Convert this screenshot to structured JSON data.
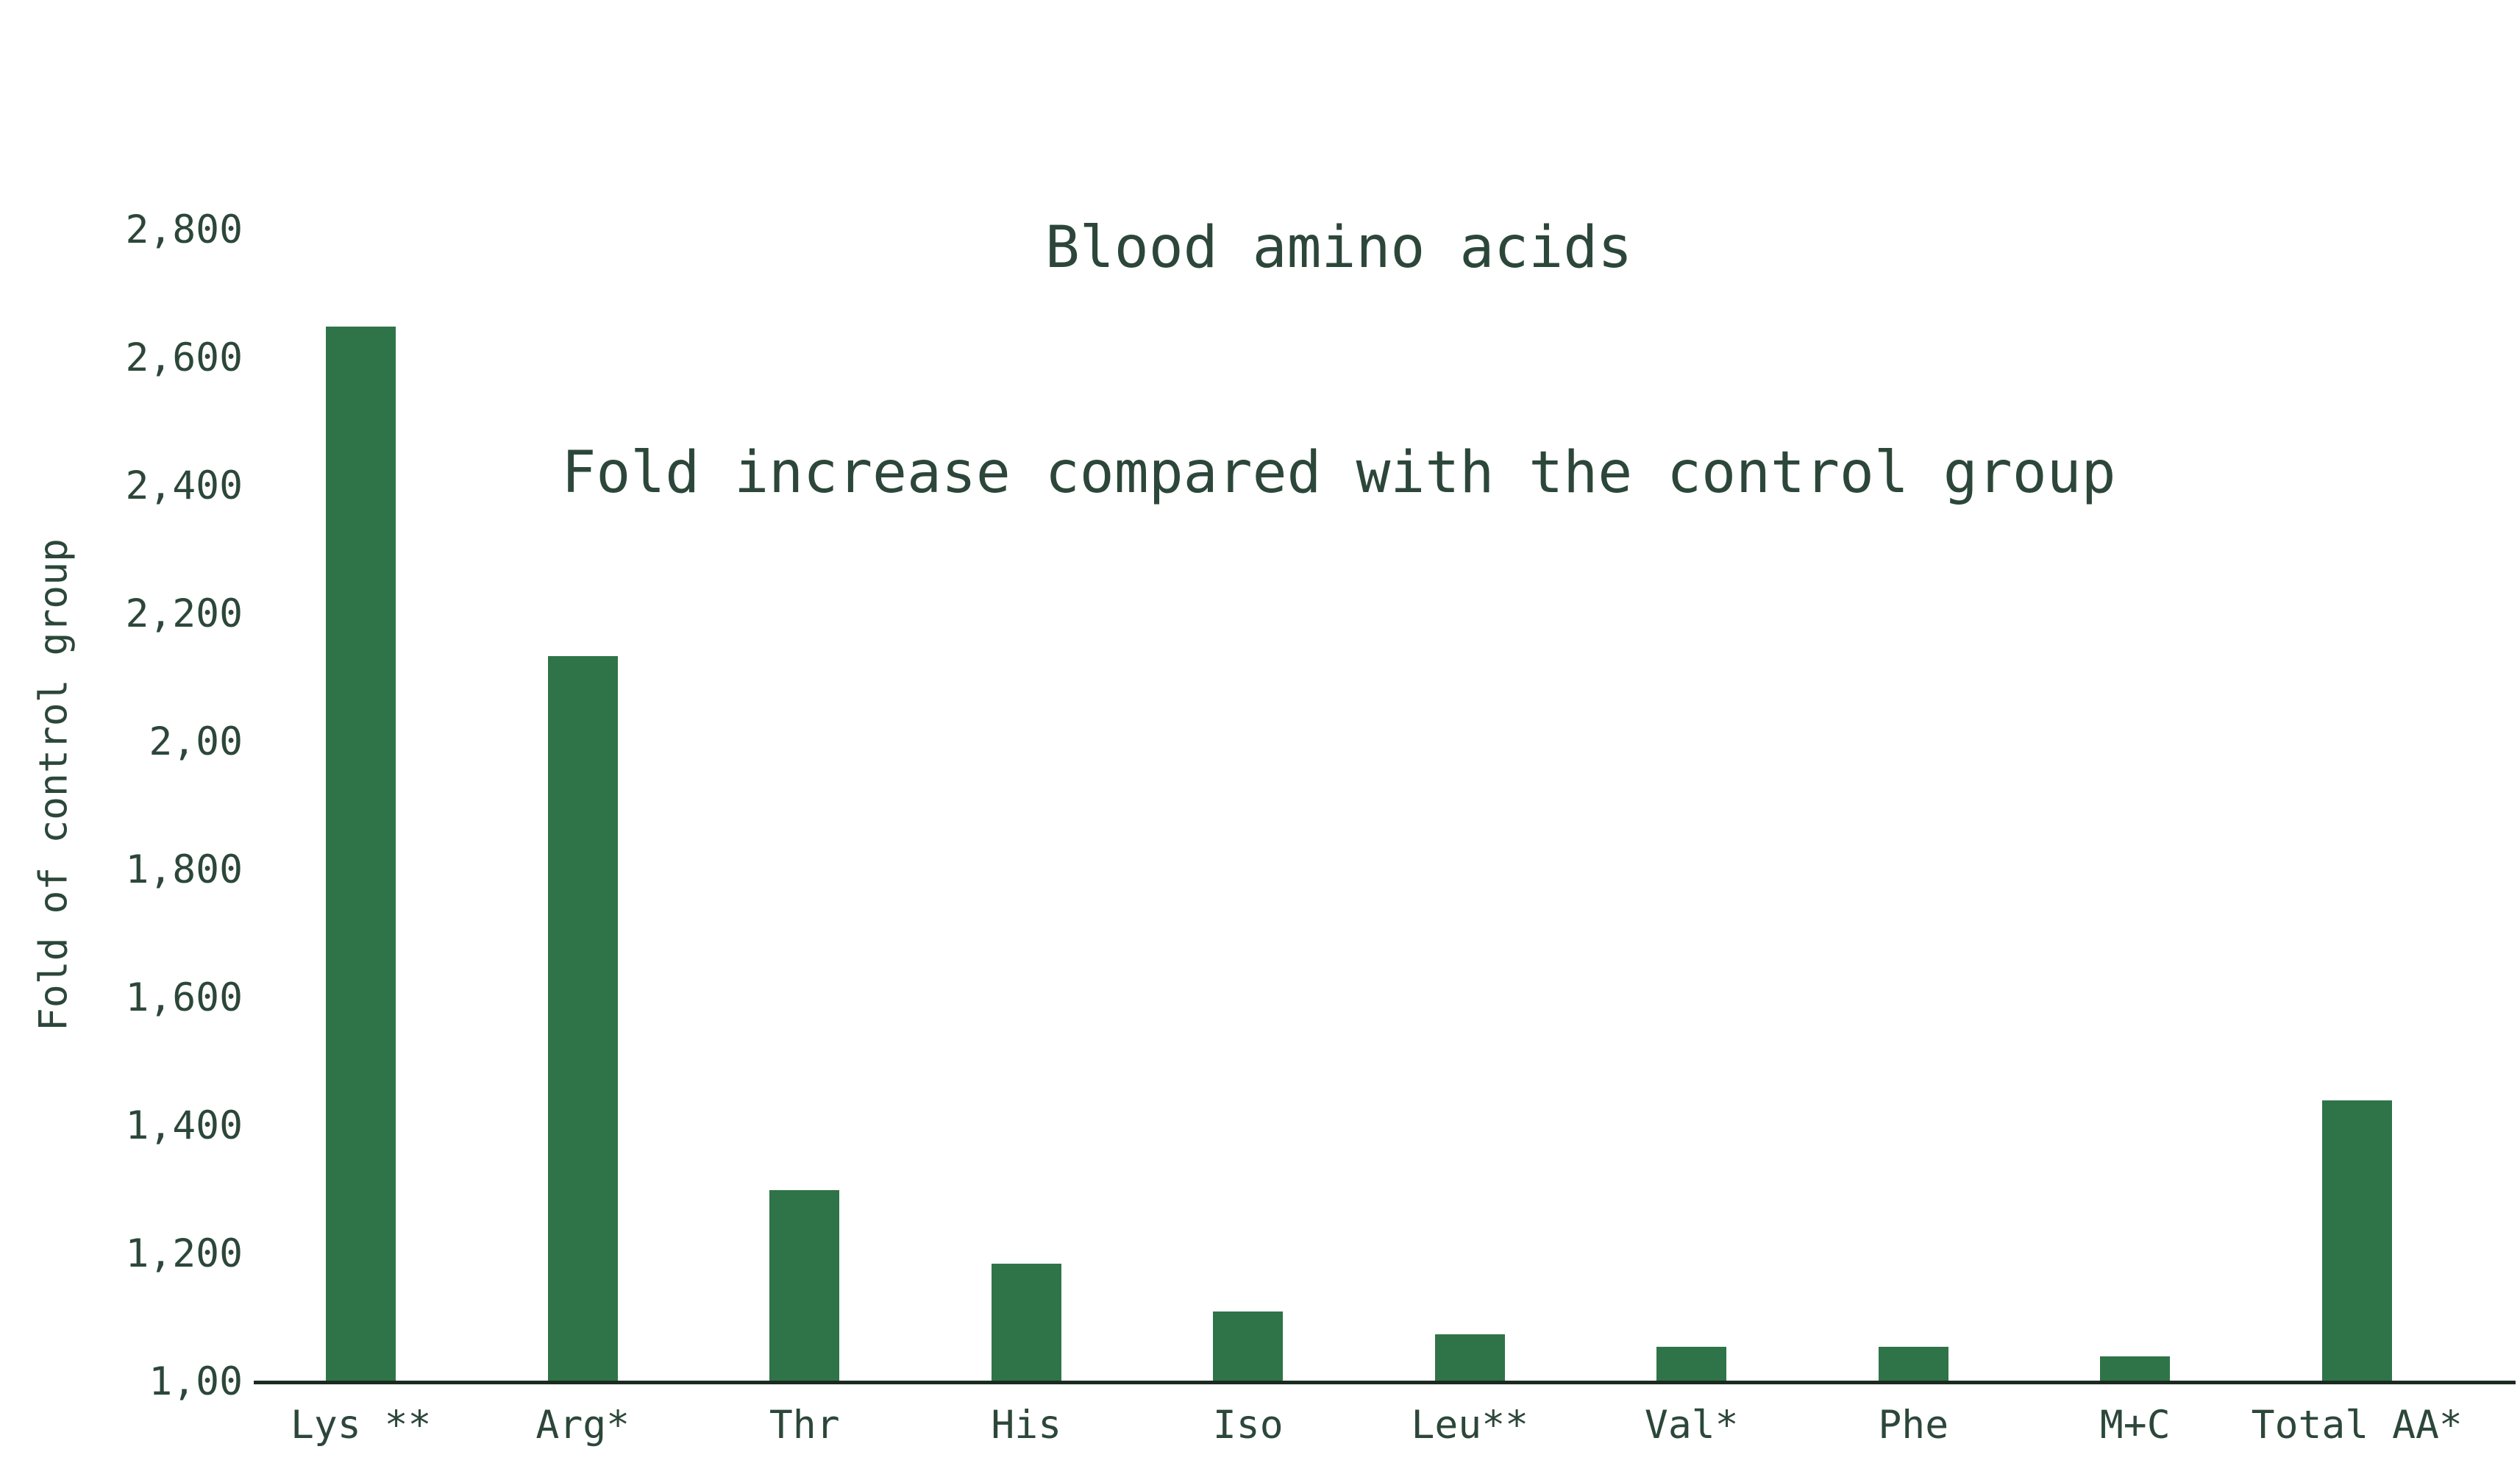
{
  "chart_data": {
    "type": "bar",
    "title_line1": "Blood amino acids",
    "title_line2": "Fold increase compared with the control group",
    "ylabel": "Fold of control group",
    "xlabel": "",
    "categories": [
      "Lys **",
      "Arg*",
      "Thr",
      "His",
      "Iso",
      "Leu**",
      "Val*",
      "Phe",
      "M+C",
      "Total AA*"
    ],
    "values": [
      2650,
      2135,
      1300,
      1185,
      1110,
      1075,
      1055,
      1055,
      1040,
      1440
    ],
    "ylim": [
      1000,
      2800
    ],
    "yticks": [
      {
        "value": 1000,
        "label": "1,00"
      },
      {
        "value": 1200,
        "label": "1,200"
      },
      {
        "value": 1400,
        "label": "1,400"
      },
      {
        "value": 1600,
        "label": "1,600"
      },
      {
        "value": 1800,
        "label": "1,800"
      },
      {
        "value": 2000,
        "label": "2,00"
      },
      {
        "value": 2200,
        "label": "2,200"
      },
      {
        "value": 2400,
        "label": "2,400"
      },
      {
        "value": 2600,
        "label": "2,600"
      },
      {
        "value": 2800,
        "label": "2,800"
      }
    ],
    "grid": false,
    "legend": false,
    "colors": {
      "bar": "#2f7448",
      "text": "#2c473a",
      "axis_line": "#1c2b20"
    }
  }
}
